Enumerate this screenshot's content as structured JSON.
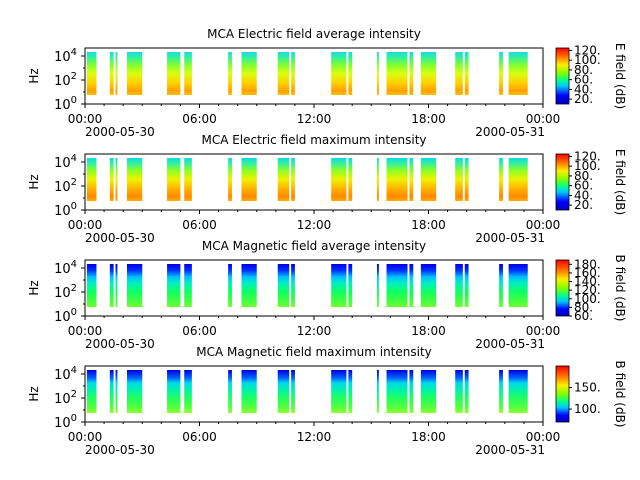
{
  "chart_data": [
    {
      "type": "heatmap",
      "title": "MCA  Electric field average intensity",
      "ylabel": "Hz",
      "yticks": [
        "10^0",
        "10^2",
        "10^4"
      ],
      "xticks": [
        "00:00",
        "06:00",
        "12:00",
        "18:00",
        "00:00"
      ],
      "xdate_start": "2000-05-30",
      "xdate_end": "2000-05-31",
      "colorbar": {
        "label": "E field (dB)",
        "ticks": [
          "20.",
          "40.",
          "60.",
          "80.",
          "100.",
          "120."
        ],
        "range": [
          10,
          125
        ],
        "colormap": "jet"
      },
      "data_intervals_hours": [
        [
          0.1,
          0.6
        ],
        [
          1.3,
          1.5
        ],
        [
          1.6,
          1.7
        ],
        [
          2.2,
          3.0
        ],
        [
          4.3,
          5.0
        ],
        [
          5.2,
          5.6
        ],
        [
          7.5,
          7.7
        ],
        [
          8.2,
          9.0
        ],
        [
          10.1,
          10.7
        ],
        [
          10.8,
          11.0
        ],
        [
          12.9,
          13.7
        ],
        [
          13.8,
          14.0
        ],
        [
          15.3,
          15.4
        ],
        [
          15.8,
          16.9
        ],
        [
          17.0,
          17.2
        ],
        [
          17.6,
          18.4
        ],
        [
          19.4,
          19.8
        ],
        [
          19.9,
          20.1
        ],
        [
          21.7,
          21.9
        ],
        [
          22.2,
          23.2
        ]
      ]
    },
    {
      "type": "heatmap",
      "title": "MCA  Electric field maximum intensity",
      "ylabel": "Hz",
      "yticks": [
        "10^0",
        "10^2",
        "10^4"
      ],
      "xticks": [
        "00:00",
        "06:00",
        "12:00",
        "18:00",
        "00:00"
      ],
      "xdate_start": "2000-05-30",
      "xdate_end": "2000-05-31",
      "colorbar": {
        "label": "E field (dB)",
        "ticks": [
          "20.",
          "40.",
          "60.",
          "80.",
          "100.",
          "120."
        ],
        "range": [
          10,
          125
        ],
        "colormap": "jet"
      },
      "data_intervals_hours": [
        [
          0.1,
          0.6
        ],
        [
          1.3,
          1.5
        ],
        [
          1.6,
          1.7
        ],
        [
          2.2,
          3.0
        ],
        [
          4.3,
          5.0
        ],
        [
          5.2,
          5.6
        ],
        [
          7.5,
          7.7
        ],
        [
          8.2,
          9.0
        ],
        [
          10.1,
          10.7
        ],
        [
          10.8,
          11.0
        ],
        [
          12.9,
          13.7
        ],
        [
          13.8,
          14.0
        ],
        [
          15.3,
          15.4
        ],
        [
          15.8,
          16.9
        ],
        [
          17.0,
          17.2
        ],
        [
          17.6,
          18.4
        ],
        [
          19.4,
          19.8
        ],
        [
          19.9,
          20.1
        ],
        [
          21.7,
          21.9
        ],
        [
          22.2,
          23.2
        ]
      ]
    },
    {
      "type": "heatmap",
      "title": "MCA  Magnetic field average intensity",
      "ylabel": "Hz",
      "yticks": [
        "10^0",
        "10^2",
        "10^4"
      ],
      "xticks": [
        "00:00",
        "06:00",
        "12:00",
        "18:00",
        "00:00"
      ],
      "xdate_start": "2000-05-30",
      "xdate_end": "2000-05-31",
      "colorbar": {
        "label": "B field (dB)",
        "ticks": [
          "60.",
          "80.",
          "100.",
          "120.",
          "140.",
          "160.",
          "180."
        ],
        "range": [
          60,
          190
        ],
        "colormap": "jet"
      },
      "data_intervals_hours": [
        [
          0.1,
          0.6
        ],
        [
          1.3,
          1.5
        ],
        [
          1.6,
          1.7
        ],
        [
          2.2,
          3.0
        ],
        [
          4.3,
          5.0
        ],
        [
          5.2,
          5.6
        ],
        [
          7.5,
          7.7
        ],
        [
          8.2,
          9.0
        ],
        [
          10.1,
          10.7
        ],
        [
          10.8,
          11.0
        ],
        [
          12.9,
          13.7
        ],
        [
          13.8,
          14.0
        ],
        [
          15.3,
          15.4
        ],
        [
          15.8,
          16.9
        ],
        [
          17.0,
          17.2
        ],
        [
          17.6,
          18.4
        ],
        [
          19.4,
          19.8
        ],
        [
          19.9,
          20.1
        ],
        [
          21.7,
          21.9
        ],
        [
          22.2,
          23.2
        ]
      ]
    },
    {
      "type": "heatmap",
      "title": "MCA  Magnetic field maximum intensity",
      "ylabel": "Hz",
      "yticks": [
        "10^0",
        "10^2",
        "10^4"
      ],
      "xticks": [
        "00:00",
        "06:00",
        "12:00",
        "18:00",
        "00:00"
      ],
      "xdate_start": "2000-05-30",
      "xdate_end": "2000-05-31",
      "colorbar": {
        "label": "B field (dB)",
        "ticks": [
          "100.",
          "150."
        ],
        "range": [
          70,
          200
        ],
        "colormap": "jet"
      },
      "data_intervals_hours": [
        [
          0.1,
          0.6
        ],
        [
          1.3,
          1.5
        ],
        [
          1.6,
          1.7
        ],
        [
          2.2,
          3.0
        ],
        [
          4.3,
          5.0
        ],
        [
          5.2,
          5.6
        ],
        [
          7.5,
          7.7
        ],
        [
          8.2,
          9.0
        ],
        [
          10.1,
          10.7
        ],
        [
          10.8,
          11.0
        ],
        [
          12.9,
          13.7
        ],
        [
          13.8,
          14.0
        ],
        [
          15.3,
          15.4
        ],
        [
          15.8,
          16.9
        ],
        [
          17.0,
          17.2
        ],
        [
          17.6,
          18.4
        ],
        [
          19.4,
          19.8
        ],
        [
          19.9,
          20.1
        ],
        [
          21.7,
          21.9
        ],
        [
          22.2,
          23.2
        ]
      ]
    }
  ]
}
